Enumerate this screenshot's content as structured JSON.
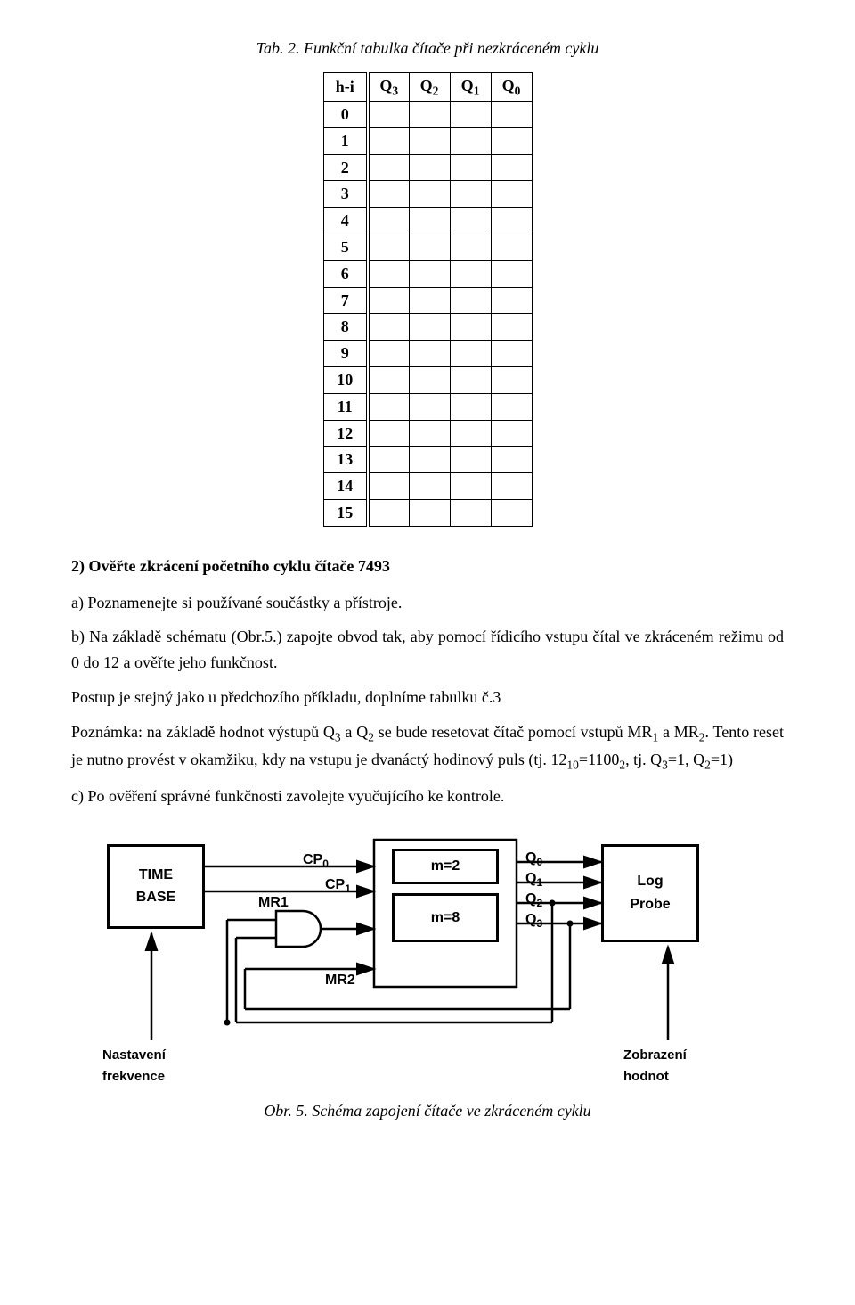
{
  "tab2_caption": "Tab. 2. Funkční tabulka čítače při nezkráceném cyklu",
  "table": {
    "headers": {
      "hi": "h-i",
      "q3": "Q",
      "q3s": "3",
      "q2": "Q",
      "q2s": "2",
      "q1": "Q",
      "q1s": "1",
      "q0": "Q",
      "q0s": "0"
    },
    "rows": [
      "0",
      "1",
      "2",
      "3",
      "4",
      "5",
      "6",
      "7",
      "8",
      "9",
      "10",
      "11",
      "12",
      "13",
      "14",
      "15"
    ]
  },
  "task2_head": "2) Ověřte zkrácení početního cyklu čítače 7493",
  "a_text": "a) Poznamenejte si používané součástky a přístroje.",
  "b_text": "b) Na základě schématu (Obr.5.) zapojte obvod tak, aby pomocí řídicího vstupu čítal ve zkráceném režimu od 0 do 12 a ověřte jeho funkčnost.",
  "postup": "Postup je stejný jako u předchozího příkladu, doplníme tabulku č.3",
  "poznamka_1": "Poznámka: na základě hodnot výstupů Q",
  "poznamka_2": " a Q",
  "poznamka_3": " se bude resetovat čítač pomocí vstupů MR",
  "poznamka_4": " a MR",
  "poznamka_5": ". Tento reset je nutno provést v okamžiku, kdy na vstupu je dvanáctý hodinový puls (tj. 12",
  "poznamka_6": "=1100",
  "poznamka_7": ", tj. Q",
  "poznamka_8": "=1, Q",
  "poznamka_9": "=1)",
  "sub3": "3",
  "sub2": "2",
  "sub1": "1",
  "sub10": "10",
  "c_text": "c) Po ověření správné funkčnosti zavolejte vyučujícího ke kontrole.",
  "diagram": {
    "time_base": "TIME BASE",
    "m2": "m=2",
    "m8": "m=8",
    "log_probe": "Log Probe",
    "cp0": "CP",
    "cp0s": "0",
    "cp1": "CP",
    "cp1s": "1",
    "mr1": "MR1",
    "mr2": "MR2",
    "q0": "Q",
    "q0s": "0",
    "q1": "Q",
    "q1s": "1",
    "q2": "Q",
    "q2s": "2",
    "q3": "Q",
    "q3s": "3",
    "nastaveni": "Nastavení frekvence",
    "zobrazeni": "Zobrazení hodnot"
  },
  "fig5_caption": "Obr. 5. Schéma zapojení čítače ve zkráceném cyklu"
}
